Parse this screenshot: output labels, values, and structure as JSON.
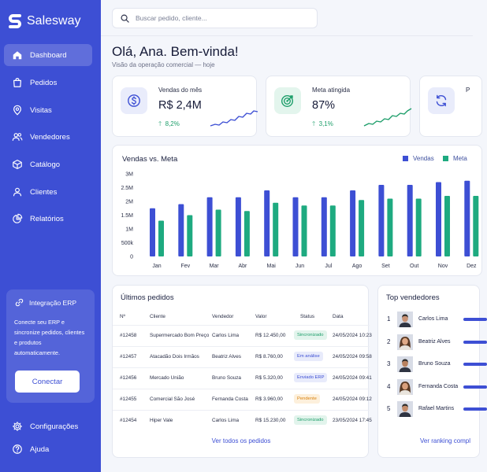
{
  "app": {
    "name": "Salesway"
  },
  "sidebar": {
    "items": [
      {
        "label": "Dashboard",
        "icon": "home-icon",
        "active": true
      },
      {
        "label": "Pedidos",
        "icon": "bag-icon"
      },
      {
        "label": "Visitas",
        "icon": "map-pin-icon"
      },
      {
        "label": "Vendedores",
        "icon": "users-icon"
      },
      {
        "label": "Catálogo",
        "icon": "box-icon"
      },
      {
        "label": "Clientes",
        "icon": "user-icon"
      },
      {
        "label": "Relatórios",
        "icon": "pie-chart-icon"
      }
    ],
    "erp": {
      "title": "Integração ERP",
      "icon": "link-icon",
      "text": "Conecte seu ERP e sincronize pedidos, clientes e produtos automaticamente.",
      "button": "Conectar"
    },
    "bottom": [
      {
        "label": "Configurações",
        "icon": "gear-icon"
      },
      {
        "label": "Ajuda",
        "icon": "help-icon"
      }
    ]
  },
  "search": {
    "placeholder": "Buscar pedido, cliente..."
  },
  "header": {
    "greeting": "Olá, Ana. Bem-vinda!",
    "subtitle": "Visão da operação comercial — hoje"
  },
  "kpis": [
    {
      "label": "Vendas do mês",
      "value": "R$ 2,4M",
      "delta": "8,2%",
      "icon": "dollar-icon",
      "icon_color": "#3d4fd4",
      "icon_bg": "#e9ecfb",
      "spark_color": "#3d4fd4"
    },
    {
      "label": "Meta atingida",
      "value": "87%",
      "delta": "3,1%",
      "icon": "target-icon",
      "icon_color": "#1d9e6a",
      "icon_bg": "#e3f5ed",
      "spark_color": "#1d9e6a"
    },
    {
      "label": "P",
      "value": "",
      "delta": "",
      "icon": "refresh-icon",
      "icon_color": "#3d4fd4",
      "icon_bg": "#e9ecfb",
      "spark_color": "#3d4fd4"
    }
  ],
  "chart_data": {
    "type": "bar",
    "title": "Vendas vs. Meta",
    "categories": [
      "Jan",
      "Fev",
      "Mar",
      "Abr",
      "Mai",
      "Jun",
      "Jul",
      "Ago",
      "Set",
      "Out",
      "Nov",
      "Dez"
    ],
    "series": [
      {
        "name": "Vendas",
        "color": "#3d4fd4",
        "values": [
          1.75,
          1.9,
          2.15,
          2.15,
          2.4,
          2.15,
          2.15,
          2.4,
          2.6,
          2.6,
          2.7,
          2.75
        ]
      },
      {
        "name": "Meta",
        "color": "#1eaa80",
        "values": [
          1.3,
          1.5,
          1.7,
          1.65,
          1.95,
          1.85,
          1.85,
          2.05,
          2.1,
          2.1,
          2.2,
          2.2
        ]
      }
    ],
    "yticks": [
      "3M",
      "2.5M",
      "2M",
      "1.5M",
      "1M",
      "500k",
      "0"
    ],
    "ylim": [
      0,
      3
    ],
    "legend": "top-right",
    "grid": false
  },
  "orders": {
    "title": "Últimos pedidos",
    "columns": [
      "Nº",
      "Cliente",
      "Vendedor",
      "Valor",
      "Status",
      "Data"
    ],
    "rows": [
      {
        "id": "#12458",
        "client": "Supermercado Bom Preço",
        "seller": "Carlos Lima",
        "value": "R$ 12.450,00",
        "status": "Sincronizado",
        "status_color": "#1d9e6a",
        "status_bg": "#e2f4ec",
        "date": "24/05/2024 10:23"
      },
      {
        "id": "#12457",
        "client": "Atacadão Dois Irmãos",
        "seller": "Beatriz Alves",
        "value": "R$ 8.760,00",
        "status": "Em análise",
        "status_color": "#3d4fd4",
        "status_bg": "#e8ebfb",
        "date": "24/05/2024 09:58"
      },
      {
        "id": "#12456",
        "client": "Mercado União",
        "seller": "Bruno Souza",
        "value": "R$ 5.320,00",
        "status": "Enviado ERP",
        "status_color": "#3d4fd4",
        "status_bg": "#e8ebfb",
        "date": "24/05/2024 09:41"
      },
      {
        "id": "#12455",
        "client": "Comercial São José",
        "seller": "Fernanda Costa",
        "value": "R$ 3.960,00",
        "status": "Pendente",
        "status_color": "#d9820f",
        "status_bg": "#fdf0dc",
        "date": "24/05/2024 09:12"
      },
      {
        "id": "#12454",
        "client": "Hiper Vale",
        "seller": "Carlos Lima",
        "value": "R$ 15.230,00",
        "status": "Sincronizado",
        "status_color": "#1d9e6a",
        "status_bg": "#e2f4ec",
        "date": "23/05/2024 17:45"
      }
    ],
    "see_all": "Ver todos os pedidos"
  },
  "sellers": {
    "title": "Top vendedores",
    "items": [
      {
        "rank": "1",
        "name": "Carlos Lima",
        "avatar": "male"
      },
      {
        "rank": "2",
        "name": "Beatriz Alves",
        "avatar": "female"
      },
      {
        "rank": "3",
        "name": "Bruno Souza",
        "avatar": "male"
      },
      {
        "rank": "4",
        "name": "Fernanda Costa",
        "avatar": "female"
      },
      {
        "rank": "5",
        "name": "Rafael Martins",
        "avatar": "male"
      }
    ],
    "see_ranking": "Ver ranking compl"
  }
}
